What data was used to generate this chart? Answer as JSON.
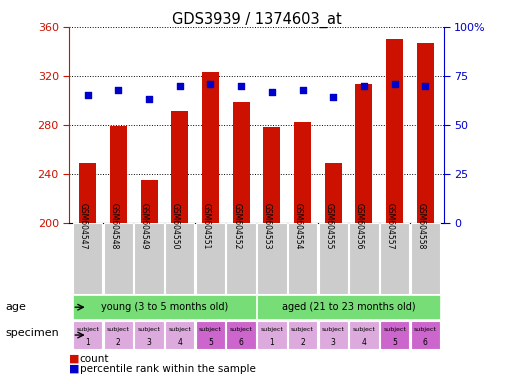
{
  "title": "GDS3939 / 1374603_at",
  "samples": [
    "GSM604547",
    "GSM604548",
    "GSM604549",
    "GSM604550",
    "GSM604551",
    "GSM604552",
    "GSM604553",
    "GSM604554",
    "GSM604555",
    "GSM604556",
    "GSM604557",
    "GSM604558"
  ],
  "counts": [
    249,
    279,
    235,
    291,
    323,
    299,
    278,
    282,
    249,
    313,
    350,
    347
  ],
  "percentile_ranks": [
    65,
    68,
    63,
    70,
    71,
    70,
    67,
    68,
    64,
    70,
    71,
    70
  ],
  "count_min": 200,
  "count_max": 360,
  "pct_min": 0,
  "pct_max": 100,
  "count_ticks": [
    200,
    240,
    280,
    320,
    360
  ],
  "pct_ticks": [
    0,
    25,
    50,
    75,
    100
  ],
  "pct_tick_labels": [
    "0",
    "25",
    "50",
    "75",
    "100%"
  ],
  "bar_color": "#cc1100",
  "dot_color": "#0000cc",
  "sample_bg_color": "#cccccc",
  "age_color": "#77dd77",
  "spec_colors": [
    "#ddaadd",
    "#ddaadd",
    "#ddaadd",
    "#ddaadd",
    "#cc66cc",
    "#cc66cc",
    "#ddaadd",
    "#ddaadd",
    "#ddaadd",
    "#ddaadd",
    "#cc66cc",
    "#cc66cc"
  ],
  "spec_labels_top": [
    "subject",
    "subject",
    "subject",
    "subject",
    "subject",
    "subject",
    "subject",
    "subject",
    "subject",
    "subject",
    "subject",
    "subject"
  ],
  "spec_labels_bot": [
    "1",
    "2",
    "3",
    "4",
    "5",
    "6",
    "1",
    "2",
    "3",
    "4",
    "5",
    "6"
  ],
  "young_label": "young (3 to 5 months old)",
  "aged_label": "aged (21 to 23 months old)",
  "legend_count": "count",
  "legend_pct": "percentile rank within the sample",
  "age_label": "age",
  "specimen_label": "specimen"
}
